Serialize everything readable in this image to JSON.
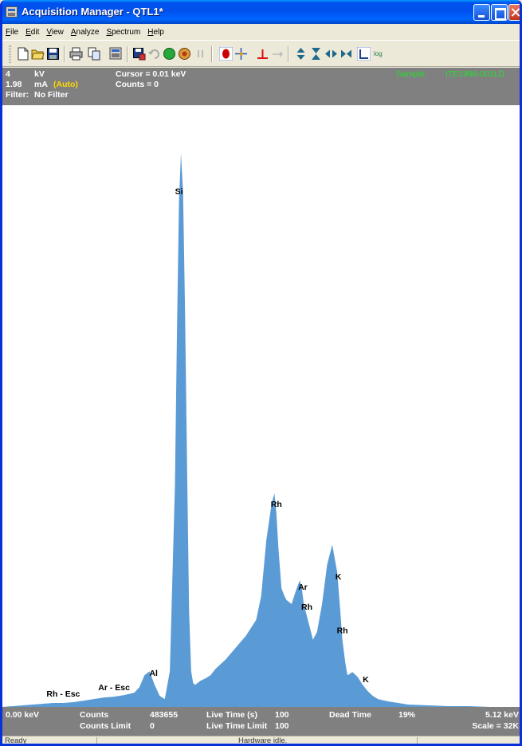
{
  "window": {
    "title": "Acquisition Manager - QTL1*"
  },
  "menu": [
    "File",
    "Edit",
    "View",
    "Analyze",
    "Spectrum",
    "Help"
  ],
  "toolbar": {
    "icons": [
      "new-icon",
      "open-icon",
      "save-icon",
      "print-icon",
      "copy-icon",
      "export-icon",
      "save-as-icon",
      "undo-icon",
      "start-icon",
      "stop-icon",
      "pause-icon",
      "record-icon",
      "crosshair-icon",
      "peak-marker-icon",
      "range-icon",
      "expand-vertical-icon",
      "compress-vertical-icon",
      "expand-horizontal-icon",
      "compress-horizontal-icon",
      "linear-scale-icon",
      "log-scale-icon"
    ],
    "log_label": "log"
  },
  "info": {
    "kv_value": "4",
    "kv_unit": "kV",
    "ma_value": "1.98",
    "ma_unit": "mA",
    "ma_mode": "(Auto)",
    "filter_label": "Filter:",
    "filter_value": "No Filter",
    "cursor": "Cursor = 0.01 keV",
    "counts": "Counts = 0",
    "sample_label": "Sample:",
    "sample_id": "ITE1998-001LD"
  },
  "chart_data": {
    "type": "area",
    "xlabel": "",
    "ylabel": "",
    "xlim": [
      0,
      5.12
    ],
    "color": "#5b9bd5",
    "x": [
      0.0,
      0.1,
      0.2,
      0.3,
      0.4,
      0.5,
      0.6,
      0.7,
      0.8,
      0.9,
      1.0,
      1.1,
      1.2,
      1.3,
      1.35,
      1.4,
      1.45,
      1.5,
      1.55,
      1.6,
      1.65,
      1.7,
      1.72,
      1.74,
      1.76,
      1.78,
      1.8,
      1.82,
      1.84,
      1.86,
      1.88,
      1.9,
      1.92,
      1.95,
      2.0,
      2.05,
      2.1,
      2.2,
      2.3,
      2.4,
      2.5,
      2.55,
      2.6,
      2.65,
      2.68,
      2.7,
      2.72,
      2.75,
      2.78,
      2.8,
      2.85,
      2.9,
      2.93,
      2.95,
      2.97,
      3.0,
      3.03,
      3.06,
      3.1,
      3.15,
      3.2,
      3.25,
      3.3,
      3.33,
      3.35,
      3.38,
      3.4,
      3.45,
      3.5,
      3.55,
      3.6,
      3.65,
      3.7,
      3.8,
      3.9,
      4.0,
      4.2,
      4.4,
      4.6,
      4.8,
      5.12
    ],
    "values": [
      0,
      1,
      2,
      3,
      4,
      5,
      5,
      6,
      8,
      10,
      12,
      13,
      15,
      18,
      25,
      40,
      45,
      28,
      14,
      10,
      45,
      280,
      470,
      640,
      700,
      650,
      500,
      300,
      120,
      45,
      30,
      28,
      30,
      33,
      36,
      40,
      48,
      60,
      75,
      90,
      110,
      140,
      210,
      255,
      270,
      245,
      200,
      150,
      140,
      135,
      130,
      150,
      160,
      150,
      130,
      115,
      100,
      85,
      95,
      130,
      180,
      205,
      170,
      120,
      85,
      55,
      40,
      44,
      38,
      28,
      20,
      14,
      10,
      7,
      5,
      3,
      2,
      1,
      1,
      0,
      0
    ],
    "peaks": [
      {
        "label": "Si",
        "x": 1.74
      },
      {
        "label": "Al",
        "x": 1.49
      },
      {
        "label": "Rh - Esc",
        "x": 0.6
      },
      {
        "label": "Ar - Esc",
        "x": 1.1
      },
      {
        "label": "Rh",
        "x": 2.7
      },
      {
        "label": "Ar",
        "x": 2.96
      },
      {
        "label": "Rh",
        "x": 3.0
      },
      {
        "label": "K",
        "x": 3.31
      },
      {
        "label": "Rh",
        "x": 3.35
      },
      {
        "label": "K",
        "x": 3.58
      }
    ]
  },
  "bottom": {
    "x_min": "0.00 keV",
    "counts_label": "Counts",
    "counts_value": "483655",
    "counts_limit_label": "Counts Limit",
    "counts_limit_value": "0",
    "live_time_label": "Live Time (s)",
    "live_time_value": "100",
    "live_time_limit_label": "Live Time Limit",
    "live_time_limit_value": "100",
    "dead_time_label": "Dead Time",
    "dead_time_value": "19%",
    "x_max": "5.12 keV",
    "scale": "Scale = 32K"
  },
  "status": {
    "left": "Ready",
    "center": "Hardware idle."
  }
}
